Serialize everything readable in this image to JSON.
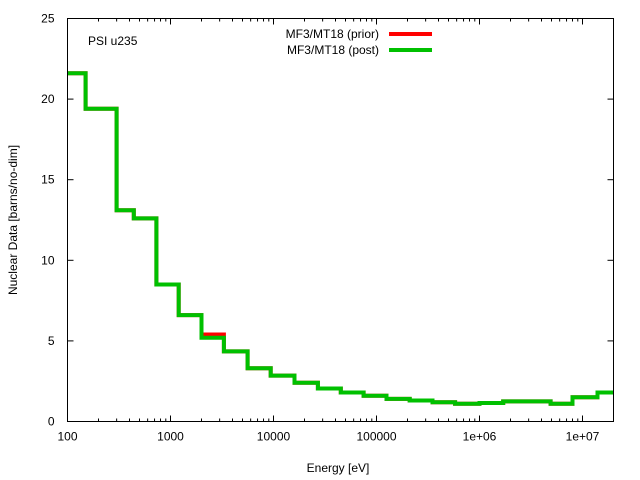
{
  "chart_data": {
    "type": "line",
    "title": "",
    "annotation": "PSI u235",
    "xlabel": "Energy [eV]",
    "ylabel": "Nuclear Data [barns/no-dim]",
    "xscale": "log",
    "xlim": [
      100,
      20000000
    ],
    "ylim": [
      0,
      25
    ],
    "grid": false,
    "legend_position": "top-center",
    "x_ticks": [
      100,
      1000,
      10000,
      100000,
      1000000,
      10000000
    ],
    "x_tick_labels": [
      "100",
      "1000",
      "10000",
      "100000",
      "1e+06",
      "1e+07"
    ],
    "y_ticks": [
      0,
      5,
      10,
      15,
      20,
      25
    ],
    "y_tick_labels": [
      "0",
      "5",
      "10",
      "15",
      "20",
      "25"
    ],
    "bin_edges": [
      100,
      150,
      300,
      440,
      730,
      1200,
      2000,
      3300,
      5600,
      9400,
      16000,
      27000,
      45000,
      75000,
      125000,
      210000,
      350000,
      580000,
      1000000,
      1700000,
      3000000,
      4900000,
      8000000,
      14000000,
      20000000
    ],
    "series": [
      {
        "name": "MF3/MT18 (prior)",
        "color": "#ff0000",
        "style": "step",
        "values": [
          21.6,
          19.4,
          13.1,
          12.6,
          8.5,
          6.6,
          5.4,
          4.35,
          3.3,
          2.85,
          2.4,
          2.05,
          1.8,
          1.6,
          1.4,
          1.3,
          1.2,
          1.1,
          1.15,
          1.25,
          1.25,
          1.1,
          1.5,
          1.8
        ]
      },
      {
        "name": "MF3/MT18 (post)",
        "color": "#00c000",
        "style": "step",
        "values": [
          21.6,
          19.4,
          13.1,
          12.6,
          8.5,
          6.6,
          5.2,
          4.35,
          3.3,
          2.85,
          2.4,
          2.05,
          1.8,
          1.6,
          1.4,
          1.3,
          1.2,
          1.1,
          1.15,
          1.25,
          1.25,
          1.1,
          1.5,
          1.8
        ]
      }
    ]
  }
}
